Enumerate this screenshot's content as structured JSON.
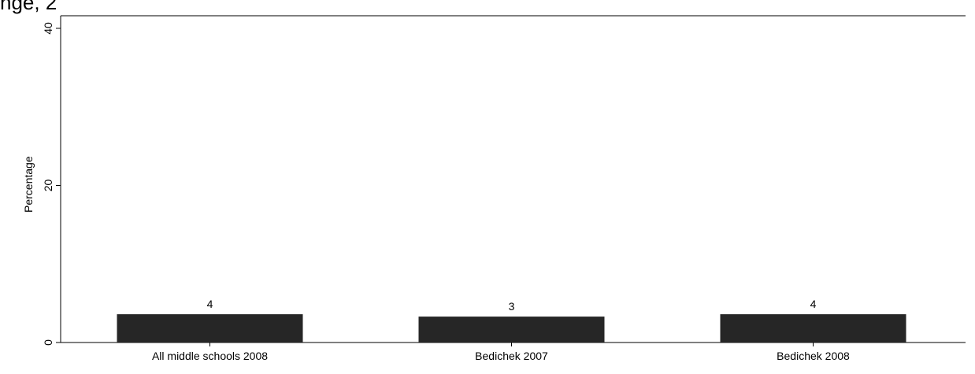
{
  "page": {
    "top_text": "nge, 2"
  },
  "chart_data": {
    "type": "bar",
    "categories": [
      "All middle schools 2008",
      "Bedichek 2007",
      "Bedichek 2008"
    ],
    "values": [
      3.6,
      3.3,
      3.6
    ],
    "data_labels": [
      "4",
      "3",
      "4"
    ],
    "title": "",
    "xlabel": "",
    "ylabel": "Percentage",
    "ylim": [
      0,
      40
    ],
    "yticks": [
      0,
      20,
      40
    ],
    "ytick_labels": [
      "0",
      "20",
      "40"
    ],
    "bar_color": "#262626",
    "grid": false
  }
}
